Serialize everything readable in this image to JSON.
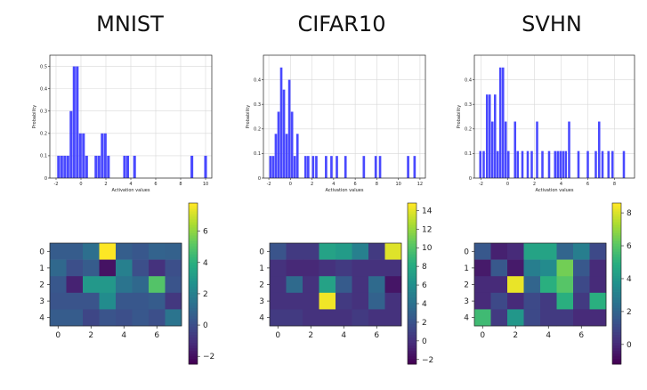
{
  "titles": [
    "MNIST",
    "CIFAR10",
    "SVHN"
  ],
  "chart_data": [
    {
      "type": "bar",
      "name": "MNIST histogram",
      "xlabel": "Activation values",
      "ylabel": "Probability",
      "xlim": [
        -2.5,
        10.5
      ],
      "ylim": [
        0,
        0.55
      ],
      "xticks": [
        -2,
        0,
        2,
        4,
        6,
        8,
        10
      ],
      "yticks": [
        0.0,
        0.1,
        0.2,
        0.3,
        0.4,
        0.5
      ],
      "bin_width": 0.22,
      "bars": [
        [
          -1.8,
          0.1
        ],
        [
          -1.55,
          0.1
        ],
        [
          -1.3,
          0.1
        ],
        [
          -1.05,
          0.1
        ],
        [
          -0.8,
          0.3
        ],
        [
          -0.55,
          0.5
        ],
        [
          -0.3,
          0.5
        ],
        [
          -0.05,
          0.2
        ],
        [
          0.2,
          0.2
        ],
        [
          0.45,
          0.1
        ],
        [
          1.2,
          0.1
        ],
        [
          1.45,
          0.1
        ],
        [
          1.7,
          0.2
        ],
        [
          1.95,
          0.2
        ],
        [
          2.2,
          0.1
        ],
        [
          3.5,
          0.1
        ],
        [
          3.75,
          0.1
        ],
        [
          4.3,
          0.1
        ],
        [
          8.9,
          0.1
        ],
        [
          10.0,
          0.1
        ]
      ]
    },
    {
      "type": "bar",
      "name": "CIFAR10 histogram",
      "xlabel": "Activation values",
      "ylabel": "Probability",
      "xlim": [
        -2.5,
        12.5
      ],
      "ylim": [
        0,
        0.5
      ],
      "xticks": [
        -2,
        0,
        2,
        4,
        6,
        8,
        10,
        12
      ],
      "yticks": [
        0.0,
        0.1,
        0.2,
        0.3,
        0.4
      ],
      "bin_width": 0.22,
      "bars": [
        [
          -1.85,
          0.09
        ],
        [
          -1.6,
          0.09
        ],
        [
          -1.35,
          0.18
        ],
        [
          -1.1,
          0.27
        ],
        [
          -0.85,
          0.45
        ],
        [
          -0.6,
          0.36
        ],
        [
          -0.35,
          0.18
        ],
        [
          -0.1,
          0.4
        ],
        [
          0.15,
          0.27
        ],
        [
          0.4,
          0.09
        ],
        [
          0.65,
          0.18
        ],
        [
          1.4,
          0.09
        ],
        [
          1.65,
          0.09
        ],
        [
          2.1,
          0.09
        ],
        [
          2.4,
          0.09
        ],
        [
          3.3,
          0.09
        ],
        [
          3.8,
          0.09
        ],
        [
          4.3,
          0.09
        ],
        [
          5.1,
          0.09
        ],
        [
          6.8,
          0.09
        ],
        [
          7.9,
          0.09
        ],
        [
          8.3,
          0.09
        ],
        [
          10.9,
          0.09
        ],
        [
          11.5,
          0.09
        ]
      ]
    },
    {
      "type": "bar",
      "name": "SVHN histogram",
      "xlabel": "Activation values",
      "ylabel": "Probability",
      "xlim": [
        -2.5,
        9.5
      ],
      "ylim": [
        0,
        0.5
      ],
      "xticks": [
        -2,
        0,
        2,
        4,
        6,
        8
      ],
      "yticks": [
        0.0,
        0.1,
        0.2,
        0.3,
        0.4
      ],
      "bin_width": 0.17,
      "bars": [
        [
          -2.05,
          0.11
        ],
        [
          -1.8,
          0.11
        ],
        [
          -1.55,
          0.34
        ],
        [
          -1.35,
          0.34
        ],
        [
          -1.15,
          0.23
        ],
        [
          -0.95,
          0.34
        ],
        [
          -0.75,
          0.11
        ],
        [
          -0.55,
          0.45
        ],
        [
          -0.35,
          0.45
        ],
        [
          -0.15,
          0.23
        ],
        [
          0.05,
          0.11
        ],
        [
          0.55,
          0.23
        ],
        [
          0.75,
          0.11
        ],
        [
          1.1,
          0.11
        ],
        [
          1.5,
          0.11
        ],
        [
          1.8,
          0.11
        ],
        [
          2.2,
          0.23
        ],
        [
          2.6,
          0.11
        ],
        [
          3.1,
          0.11
        ],
        [
          3.55,
          0.11
        ],
        [
          3.75,
          0.11
        ],
        [
          3.95,
          0.11
        ],
        [
          4.15,
          0.11
        ],
        [
          4.35,
          0.11
        ],
        [
          4.6,
          0.23
        ],
        [
          5.3,
          0.11
        ],
        [
          6.0,
          0.11
        ],
        [
          6.6,
          0.11
        ],
        [
          6.85,
          0.23
        ],
        [
          7.1,
          0.11
        ],
        [
          7.55,
          0.11
        ],
        [
          7.85,
          0.11
        ],
        [
          8.7,
          0.11
        ]
      ]
    },
    {
      "type": "heatmap",
      "name": "MNIST heatmap",
      "xticks": [
        0,
        2,
        4,
        6
      ],
      "yticks": [
        0,
        1,
        2,
        3,
        4
      ],
      "vmin": -2.5,
      "vmax": 7.8,
      "cbar_ticks": [
        -2,
        0,
        2,
        4,
        6
      ],
      "values": [
        [
          0.5,
          0.5,
          1.3,
          7.8,
          0.6,
          0.3,
          0.8,
          0.7
        ],
        [
          1.0,
          0.0,
          0.5,
          -2.0,
          2.0,
          0.0,
          -1.0,
          0.0
        ],
        [
          0.3,
          -1.5,
          3.0,
          3.0,
          1.5,
          1.0,
          5.0,
          0.2
        ],
        [
          0.2,
          0.2,
          0.2,
          2.5,
          0.3,
          0.3,
          0.5,
          -0.8
        ],
        [
          0.5,
          0.5,
          -0.3,
          0.2,
          0.0,
          0.3,
          0.0,
          1.5
        ]
      ]
    },
    {
      "type": "heatmap",
      "name": "CIFAR10 heatmap",
      "xticks": [
        0,
        2,
        4,
        6
      ],
      "yticks": [
        0,
        1,
        2,
        3,
        4
      ],
      "vmin": -2.5,
      "vmax": 14.8,
      "cbar_ticks": [
        -2,
        0,
        2,
        4,
        6,
        8,
        10,
        12,
        14
      ],
      "values": [
        [
          2.0,
          0.5,
          0.5,
          7.5,
          7.0,
          5.0,
          0.5,
          14.0
        ],
        [
          0.0,
          -0.5,
          -0.5,
          0.0,
          0.5,
          0.0,
          0.0,
          0.0
        ],
        [
          0.0,
          3.5,
          0.0,
          7.5,
          2.5,
          0.0,
          3.5,
          -1.5
        ],
        [
          0.0,
          0.0,
          0.0,
          14.5,
          0.5,
          0.0,
          3.0,
          0.0
        ],
        [
          0.5,
          0.5,
          0.0,
          0.0,
          0.0,
          0.5,
          0.0,
          0.0
        ]
      ]
    },
    {
      "type": "heatmap",
      "name": "SVHN heatmap",
      "xticks": [
        0,
        2,
        4,
        6
      ],
      "yticks": [
        0,
        1,
        2,
        3,
        4
      ],
      "vmin": -1.2,
      "vmax": 8.6,
      "cbar_ticks": [
        0,
        2,
        4,
        6,
        8
      ],
      "values": [
        [
          1.5,
          -0.3,
          0.0,
          4.5,
          4.5,
          2.0,
          3.0,
          1.0
        ],
        [
          -0.5,
          1.5,
          -0.5,
          3.0,
          3.5,
          6.5,
          1.5,
          0.0
        ],
        [
          0.0,
          0.0,
          8.3,
          2.0,
          5.0,
          6.0,
          1.0,
          0.0
        ],
        [
          0.0,
          1.0,
          0.0,
          1.0,
          0.5,
          5.0,
          0.5,
          5.0
        ],
        [
          5.5,
          0.5,
          4.0,
          1.0,
          0.5,
          0.5,
          0.0,
          0.0
        ]
      ]
    }
  ]
}
